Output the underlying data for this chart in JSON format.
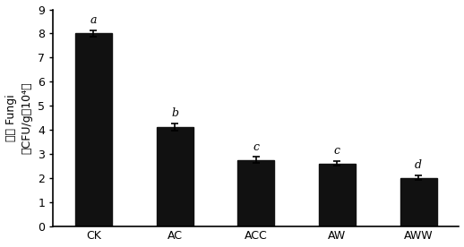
{
  "categories": [
    "CK",
    "AC",
    "ACC",
    "AW",
    "AWW"
  ],
  "values": [
    8.0,
    4.1,
    2.75,
    2.6,
    2.0
  ],
  "errors": [
    0.12,
    0.15,
    0.12,
    0.1,
    0.1
  ],
  "letters": [
    "a",
    "b",
    "c",
    "c",
    "d"
  ],
  "bar_color": "#111111",
  "ylabel_line1": "真菌 Fungi",
  "ylabel_line2": "（CFU/g，10⁴）",
  "ylim": [
    0,
    9
  ],
  "yticks": [
    0,
    1,
    2,
    3,
    4,
    5,
    6,
    7,
    8,
    9
  ],
  "bar_width": 0.45,
  "figure_width": 5.18,
  "figure_height": 2.76,
  "dpi": 100,
  "bg_color": "#ffffff"
}
